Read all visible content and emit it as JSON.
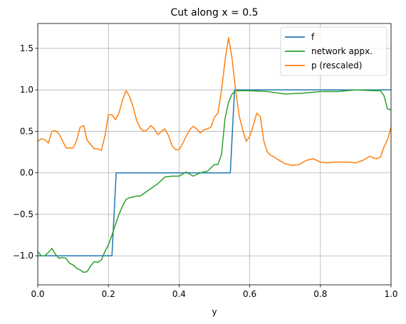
{
  "chart_data": {
    "type": "line",
    "title": "Cut along x = 0.5",
    "xlabel": "y",
    "ylabel": "",
    "xlim": [
      0.0,
      1.0
    ],
    "ylim": [
      -1.35,
      1.8
    ],
    "grid": true,
    "legend_position": "top-right",
    "x_ticks": [
      0.0,
      0.2,
      0.4,
      0.6,
      0.8,
      1.0
    ],
    "x_tick_labels": [
      "0.0",
      "0.2",
      "0.4",
      "0.6",
      "0.8",
      "1.0"
    ],
    "y_ticks": [
      -1.0,
      -0.5,
      0.0,
      0.5,
      1.0,
      1.5
    ],
    "y_tick_labels": [
      "−1.0",
      "−0.5",
      "0.0",
      "0.5",
      "1.0",
      "1.5"
    ],
    "series": [
      {
        "name": "f",
        "color": "#1f77b4",
        "x": [
          0.0,
          0.21,
          0.222,
          0.545,
          0.557,
          1.0
        ],
        "y": [
          -1.0,
          -1.0,
          0.0,
          0.0,
          1.0,
          1.0
        ]
      },
      {
        "name": "network appx.",
        "color": "#2ca02c",
        "x": [
          0.0,
          0.01,
          0.02,
          0.03,
          0.04,
          0.05,
          0.06,
          0.07,
          0.08,
          0.09,
          0.1,
          0.11,
          0.12,
          0.13,
          0.14,
          0.15,
          0.16,
          0.17,
          0.18,
          0.19,
          0.2,
          0.21,
          0.22,
          0.23,
          0.24,
          0.25,
          0.26,
          0.27,
          0.28,
          0.29,
          0.3,
          0.32,
          0.34,
          0.36,
          0.38,
          0.4,
          0.42,
          0.44,
          0.46,
          0.48,
          0.5,
          0.51,
          0.52,
          0.53,
          0.54,
          0.55,
          0.56,
          0.57,
          0.58,
          0.6,
          0.65,
          0.7,
          0.75,
          0.8,
          0.85,
          0.9,
          0.95,
          0.97,
          0.98,
          0.99,
          1.0
        ],
        "y": [
          -0.95,
          -1.0,
          -1.0,
          -0.96,
          -0.91,
          -0.98,
          -1.03,
          -1.02,
          -1.03,
          -1.09,
          -1.11,
          -1.15,
          -1.17,
          -1.2,
          -1.19,
          -1.12,
          -1.07,
          -1.08,
          -1.05,
          -0.95,
          -0.87,
          -0.75,
          -0.62,
          -0.5,
          -0.4,
          -0.32,
          -0.3,
          -0.29,
          -0.28,
          -0.28,
          -0.25,
          -0.19,
          -0.13,
          -0.05,
          -0.04,
          -0.04,
          0.01,
          -0.04,
          0.0,
          0.02,
          0.1,
          0.1,
          0.22,
          0.65,
          0.85,
          0.95,
          0.99,
          0.99,
          0.99,
          0.99,
          0.98,
          0.95,
          0.96,
          0.98,
          0.98,
          1.0,
          0.99,
          0.99,
          0.93,
          0.77,
          0.76
        ]
      },
      {
        "name": "p (rescaled)",
        "color": "#ff7f0e",
        "x": [
          0.0,
          0.01,
          0.02,
          0.03,
          0.04,
          0.05,
          0.06,
          0.07,
          0.08,
          0.09,
          0.1,
          0.11,
          0.12,
          0.13,
          0.14,
          0.15,
          0.16,
          0.17,
          0.18,
          0.19,
          0.2,
          0.21,
          0.22,
          0.23,
          0.24,
          0.25,
          0.26,
          0.27,
          0.28,
          0.29,
          0.3,
          0.31,
          0.32,
          0.33,
          0.34,
          0.35,
          0.36,
          0.37,
          0.38,
          0.39,
          0.4,
          0.41,
          0.42,
          0.43,
          0.44,
          0.45,
          0.46,
          0.47,
          0.48,
          0.49,
          0.5,
          0.51,
          0.52,
          0.53,
          0.54,
          0.55,
          0.56,
          0.57,
          0.58,
          0.59,
          0.6,
          0.61,
          0.62,
          0.63,
          0.64,
          0.65,
          0.66,
          0.67,
          0.68,
          0.7,
          0.72,
          0.74,
          0.76,
          0.78,
          0.8,
          0.82,
          0.84,
          0.86,
          0.88,
          0.9,
          0.92,
          0.94,
          0.95,
          0.96,
          0.97,
          0.98,
          0.99,
          1.0
        ],
        "y": [
          0.38,
          0.41,
          0.4,
          0.36,
          0.5,
          0.51,
          0.47,
          0.39,
          0.3,
          0.3,
          0.3,
          0.39,
          0.55,
          0.57,
          0.39,
          0.34,
          0.29,
          0.29,
          0.27,
          0.44,
          0.7,
          0.7,
          0.64,
          0.72,
          0.88,
          0.99,
          0.92,
          0.79,
          0.63,
          0.54,
          0.5,
          0.52,
          0.57,
          0.53,
          0.46,
          0.5,
          0.53,
          0.45,
          0.33,
          0.28,
          0.28,
          0.35,
          0.44,
          0.52,
          0.56,
          0.53,
          0.48,
          0.52,
          0.53,
          0.55,
          0.67,
          0.72,
          0.99,
          1.35,
          1.63,
          1.38,
          1.0,
          0.69,
          0.52,
          0.38,
          0.44,
          0.57,
          0.72,
          0.68,
          0.38,
          0.25,
          0.21,
          0.19,
          0.16,
          0.11,
          0.09,
          0.1,
          0.15,
          0.17,
          0.13,
          0.12,
          0.13,
          0.13,
          0.13,
          0.12,
          0.15,
          0.2,
          0.18,
          0.17,
          0.19,
          0.31,
          0.4,
          0.55
        ]
      }
    ]
  }
}
